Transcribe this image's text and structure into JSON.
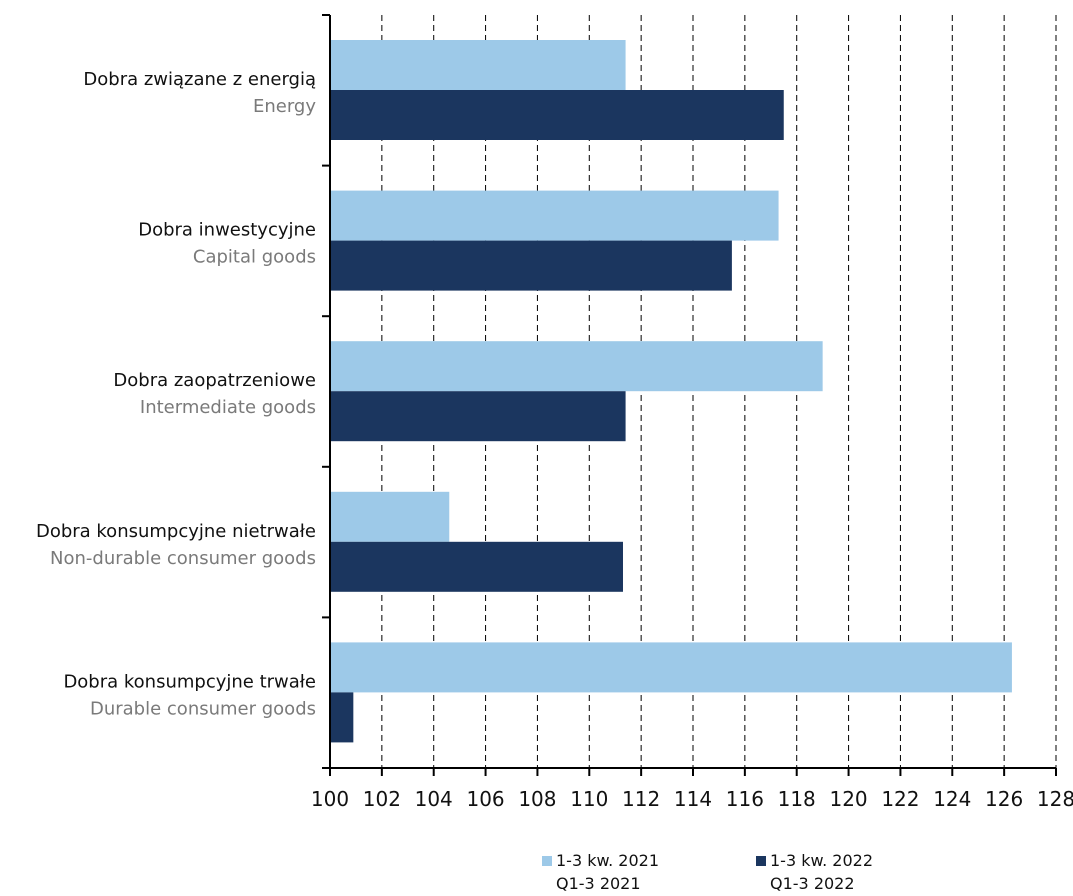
{
  "chart_data": {
    "type": "bar",
    "orientation": "horizontal",
    "categories": [
      {
        "pl": "Dobra związane z energią",
        "en": "Energy"
      },
      {
        "pl": "Dobra inwestycyjne",
        "en": "Capital goods"
      },
      {
        "pl": "Dobra zaopatrzeniowe",
        "en": "Intermediate goods"
      },
      {
        "pl": "Dobra konsumpcyjne nietrwałe",
        "en": "Non-durable consumer goods"
      },
      {
        "pl": "Dobra konsumpcyjne trwałe",
        "en": "Durable consumer goods"
      }
    ],
    "series": [
      {
        "name": "1-3 kw. 2021",
        "name_en": "Q1-3 2021",
        "color": "#9dc9e8",
        "values": [
          111.4,
          117.3,
          119.0,
          104.6,
          126.3
        ]
      },
      {
        "name": "1-3 kw. 2022",
        "name_en": "Q1-3 2022",
        "color": "#1b365f",
        "values": [
          117.5,
          115.5,
          111.4,
          111.3,
          100.9
        ]
      }
    ],
    "xlim": [
      100,
      128
    ],
    "xticks": [
      100,
      102,
      104,
      106,
      108,
      110,
      112,
      114,
      116,
      118,
      120,
      122,
      124,
      126,
      128
    ],
    "xticks_labels": [
      "100",
      "102",
      "104",
      "106",
      "108",
      "110",
      "112",
      "114",
      "116",
      "118",
      "120",
      "122",
      "124",
      "126",
      "128"
    ],
    "grid": "vertical-dashed",
    "legend": "bottom"
  }
}
